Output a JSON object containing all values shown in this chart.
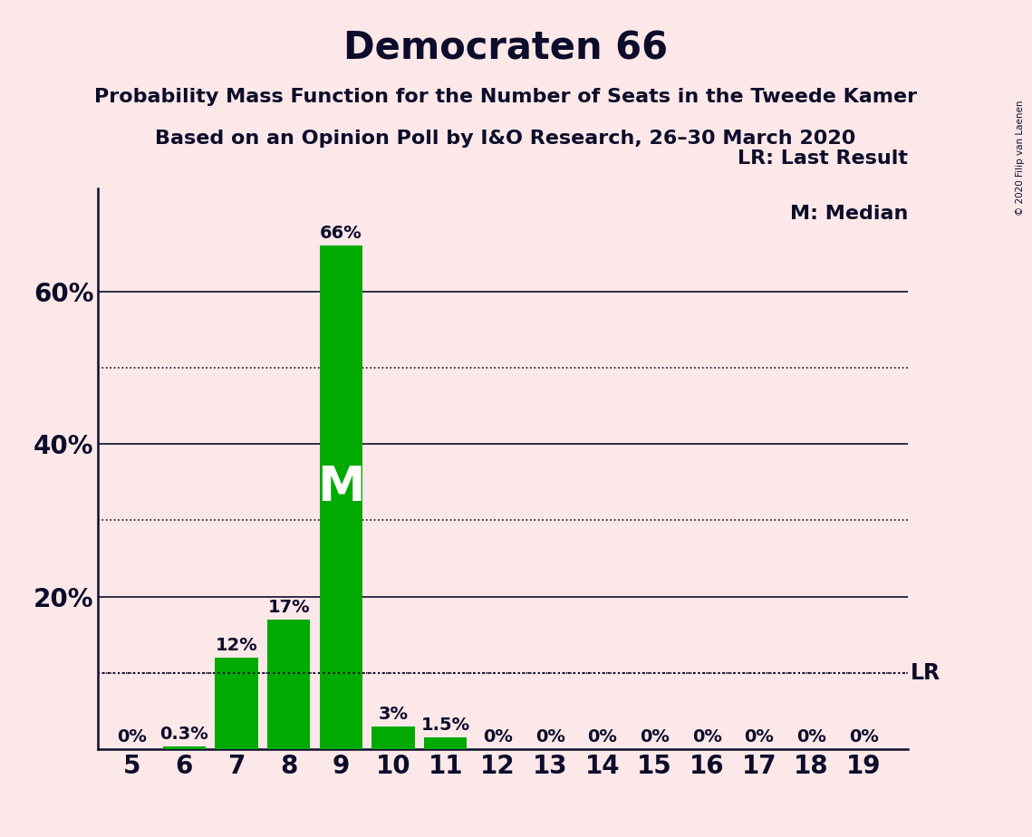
{
  "title": "Democraten 66",
  "subtitle1": "Probability Mass Function for the Number of Seats in the Tweede Kamer",
  "subtitle2": "Based on an Opinion Poll by I&O Research, 26–30 March 2020",
  "copyright": "© 2020 Filip van Laenen",
  "legend_lr": "LR: Last Result",
  "legend_m": "M: Median",
  "background_color": "#fce8e8",
  "bar_color": "#00aa00",
  "text_color": "#0d0d2b",
  "seats": [
    5,
    6,
    7,
    8,
    9,
    10,
    11,
    12,
    13,
    14,
    15,
    16,
    17,
    18,
    19
  ],
  "probabilities": [
    0.0,
    0.003,
    0.12,
    0.17,
    0.66,
    0.03,
    0.015,
    0.0,
    0.0,
    0.0,
    0.0,
    0.0,
    0.0,
    0.0,
    0.0
  ],
  "labels": [
    "0%",
    "0.3%",
    "12%",
    "17%",
    "66%",
    "3%",
    "1.5%",
    "0%",
    "0%",
    "0%",
    "0%",
    "0%",
    "0%",
    "0%",
    "0%"
  ],
  "median_seat": 9,
  "lr_value": 0.1,
  "ylim": [
    0,
    0.735
  ],
  "yticks": [
    0.2,
    0.4,
    0.6
  ],
  "ytick_labels": [
    "20%",
    "40%",
    "60%"
  ],
  "dotted_yticks": [
    0.1,
    0.3,
    0.5
  ],
  "title_fontsize": 30,
  "subtitle_fontsize": 16,
  "label_fontsize": 14,
  "axis_tick_fontsize": 20,
  "m_fontsize": 38
}
